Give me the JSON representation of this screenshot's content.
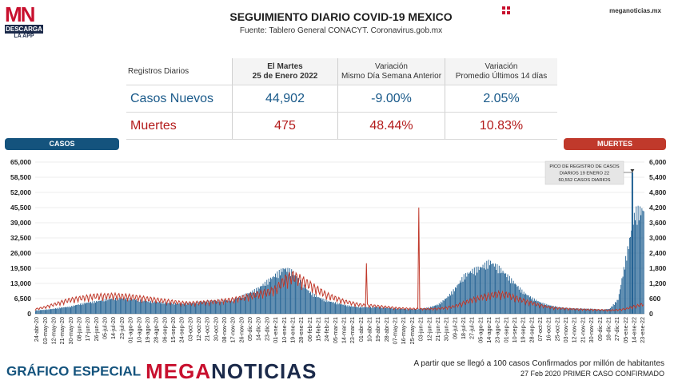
{
  "brand": {
    "logo_mn": "MN",
    "logo_descarga": "DESCARGA",
    "logo_app": "LA APP",
    "site": "meganoticias.mx"
  },
  "header": {
    "title": "SEGUIMIENTO DIARIO COVID-19 MEXICO",
    "source": "Fuente: Tablero General CONACYT. Coronavirus.gob.mx"
  },
  "stats": {
    "col_headers": [
      "Registros Diarios",
      "El Martes 25 de Enero 2022",
      "Variación Mismo Día Semana Anterior",
      "Variación Promedio Últimos 14 días"
    ],
    "rows": [
      {
        "label": "Casos Nuevos",
        "value": "44,902",
        "var_week": "-9.00%",
        "var_14": "2.05%"
      },
      {
        "label": "Muertes",
        "value": "475",
        "var_week": "48.44%",
        "var_14": "10.83%"
      }
    ]
  },
  "legend": {
    "casos": "CASOS",
    "muertes": "MUERTES"
  },
  "annotation": {
    "lines": [
      "PICO DE REGISTRO DE CASOS",
      "DIARIOS 19 ENERO 22",
      "60,552 CASOS DIARIOS"
    ]
  },
  "footer": {
    "left_a": "GRÁFICO ESPECIAL",
    "left_b1": "MEGA",
    "left_b2": "NOTICIAS",
    "right_1": "A partir que se llegó a 100 casos Confirmados por millón de habitantes",
    "right_2": "27 Feb 2020 PRIMER CASO CONFIRMADO"
  },
  "colors": {
    "casos": "#1f5f91",
    "muertes": "#c0392b",
    "grid": "#dcdcdc",
    "brand_red": "#c8102e",
    "brand_navy": "#1b2a4a"
  },
  "icons": {
    "grid": "grid-icon"
  },
  "chart_data": {
    "type": "bar",
    "x_labels": [
      "24-abr-20",
      "03-may-20",
      "12-may-20",
      "21-may-20",
      "30-may-20",
      "08-jun-20",
      "17-jun-20",
      "26-jun-20",
      "05-jul-20",
      "14-jul-20",
      "23-jul-20",
      "01-ago-20",
      "10-ago-20",
      "19-ago-20",
      "28-ago-20",
      "06-sep-20",
      "15-sep-20",
      "24-sep-20",
      "03-oct-20",
      "12-oct-20",
      "21-oct-20",
      "30-oct-20",
      "08-nov-20",
      "17-nov-20",
      "26-nov-20",
      "05-dic-20",
      "14-dic-20",
      "23-dic-20",
      "01-ene-21",
      "10-ene-21",
      "19-ene-21",
      "28-ene-21",
      "06-feb-21",
      "15-feb-21",
      "24-feb-21",
      "05-mar-21",
      "14-mar-21",
      "23-mar-21",
      "01-abr-21",
      "10-abr-21",
      "19-abr-21",
      "28-abr-21",
      "07-may-21",
      "16-may-21",
      "25-may-21",
      "03-jun-21",
      "12-jun-21",
      "21-jun-21",
      "30-jun-21",
      "09-jul-21",
      "18-jul-21",
      "27-jul-21",
      "05-ago-21",
      "14-ago-21",
      "23-ago-21",
      "01-sep-21",
      "10-sep-21",
      "19-sep-21",
      "28-sep-21",
      "07-oct-21",
      "16-oct-21",
      "25-oct-21",
      "03-nov-21",
      "12-nov-21",
      "21-nov-21",
      "30-nov-21",
      "09-dic-21",
      "18-dic-21",
      "27-dic-21",
      "05-ene-22",
      "14-ene-22",
      "23-ene-22"
    ],
    "cases_axis": {
      "label": "CASOS",
      "ticks": [
        "65,000",
        "58,500",
        "52,000",
        "45,500",
        "39,000",
        "32,500",
        "26,000",
        "19,500",
        "13,000",
        "6,500",
        "0"
      ],
      "ylim": [
        0,
        65000
      ]
    },
    "deaths_axis": {
      "label": "MUERTES",
      "ticks": [
        "6,000",
        "5,400",
        "4,800",
        "4,200",
        "3,600",
        "3,000",
        "2,400",
        "1,800",
        "1,200",
        "600",
        "0"
      ],
      "ylim": [
        0,
        6000
      ]
    },
    "series": [
      {
        "name": "CASOS",
        "axis": "left",
        "type": "bar",
        "values": [
          1500,
          1800,
          2200,
          2800,
          3200,
          4200,
          5000,
          5500,
          6300,
          6800,
          7000,
          6800,
          6200,
          5700,
          5400,
          5000,
          4800,
          4600,
          4700,
          5200,
          5700,
          6000,
          6000,
          6400,
          7800,
          9500,
          11500,
          14500,
          17500,
          20500,
          19000,
          14000,
          9800,
          7500,
          5800,
          5000,
          4000,
          3300,
          3000,
          3000,
          3000,
          2700,
          2400,
          2300,
          2100,
          2300,
          2900,
          4200,
          7200,
          11500,
          17000,
          19500,
          21000,
          23500,
          21000,
          17500,
          13500,
          9500,
          7000,
          5000,
          3800,
          3000,
          2600,
          2400,
          2300,
          2200,
          1900,
          2200,
          6500,
          27000,
          46000,
          47000
        ]
      },
      {
        "name": "MUERTES",
        "axis": "right",
        "type": "line",
        "values": [
          180,
          250,
          350,
          450,
          550,
          600,
          650,
          700,
          700,
          720,
          700,
          680,
          640,
          600,
          560,
          520,
          480,
          440,
          420,
          440,
          460,
          480,
          520,
          560,
          620,
          700,
          780,
          850,
          950,
          1300,
          1500,
          1350,
          1150,
          950,
          750,
          620,
          500,
          420,
          350,
          330,
          300,
          270,
          230,
          210,
          200,
          190,
          190,
          200,
          240,
          300,
          430,
          550,
          650,
          720,
          780,
          760,
          640,
          520,
          420,
          330,
          260,
          220,
          200,
          180,
          170,
          160,
          150,
          140,
          150,
          200,
          300,
          380
        ]
      }
    ],
    "peaks": [
      {
        "series": "MUERTES",
        "x": "01-jun-21",
        "value": 4200
      },
      {
        "series": "MUERTES",
        "x": "08-abr-21",
        "value": 2000
      }
    ],
    "annotation": {
      "text": "PICO DE REGISTRO DE CASOS DIARIOS 19 ENERO 22 60,552 CASOS DIARIOS",
      "x": "19-ene-22",
      "value": 60552
    },
    "grid": true
  }
}
